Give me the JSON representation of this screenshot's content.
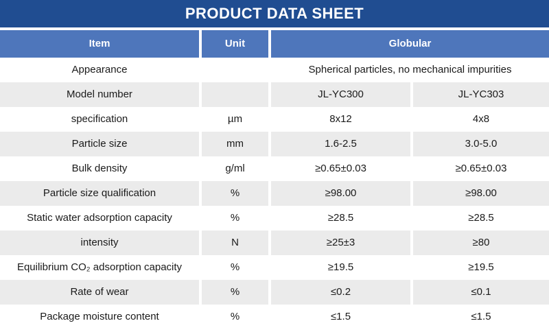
{
  "title": "PRODUCT DATA SHEET",
  "colors": {
    "title_bar": "#204D91",
    "header": "#4E76BB",
    "row_alt": "#EBEBEB",
    "header_text": "#FFFFFF",
    "body_text": "#1A1A1A"
  },
  "table": {
    "headers": {
      "item": "Item",
      "unit": "Unit",
      "group": "Globular"
    },
    "rows": [
      {
        "item": "Appearance",
        "unit": "",
        "span": "Spherical particles, no mechanical impurities"
      },
      {
        "item": "Model number",
        "unit": "",
        "v1": "JL-YC300",
        "v2": "JL-YC303"
      },
      {
        "item": "specification",
        "unit": "µm",
        "v1": "8x12",
        "v2": "4x8"
      },
      {
        "item": "Particle size",
        "unit": "mm",
        "v1": "1.6-2.5",
        "v2": "3.0-5.0"
      },
      {
        "item": "Bulk density",
        "unit": "g/ml",
        "v1": "≥0.65±0.03",
        "v2": "≥0.65±0.03"
      },
      {
        "item": "Particle size qualification",
        "unit": "%",
        "v1": "≥98.00",
        "v2": "≥98.00"
      },
      {
        "item": "Static water adsorption capacity",
        "unit": "%",
        "v1": "≥28.5",
        "v2": "≥28.5"
      },
      {
        "item": "intensity",
        "unit": "N",
        "v1": "≥25±3",
        "v2": "≥80"
      },
      {
        "item": "Equilibrium CO₂ adsorption capacity",
        "unit": "%",
        "v1": "≥19.5",
        "v2": "≥19.5"
      },
      {
        "item": "Rate of wear",
        "unit": "%",
        "v1": "≤0.2",
        "v2": "≤0.1"
      },
      {
        "item": "Package moisture content",
        "unit": "%",
        "v1": "≤1.5",
        "v2": "≤1.5"
      }
    ]
  }
}
